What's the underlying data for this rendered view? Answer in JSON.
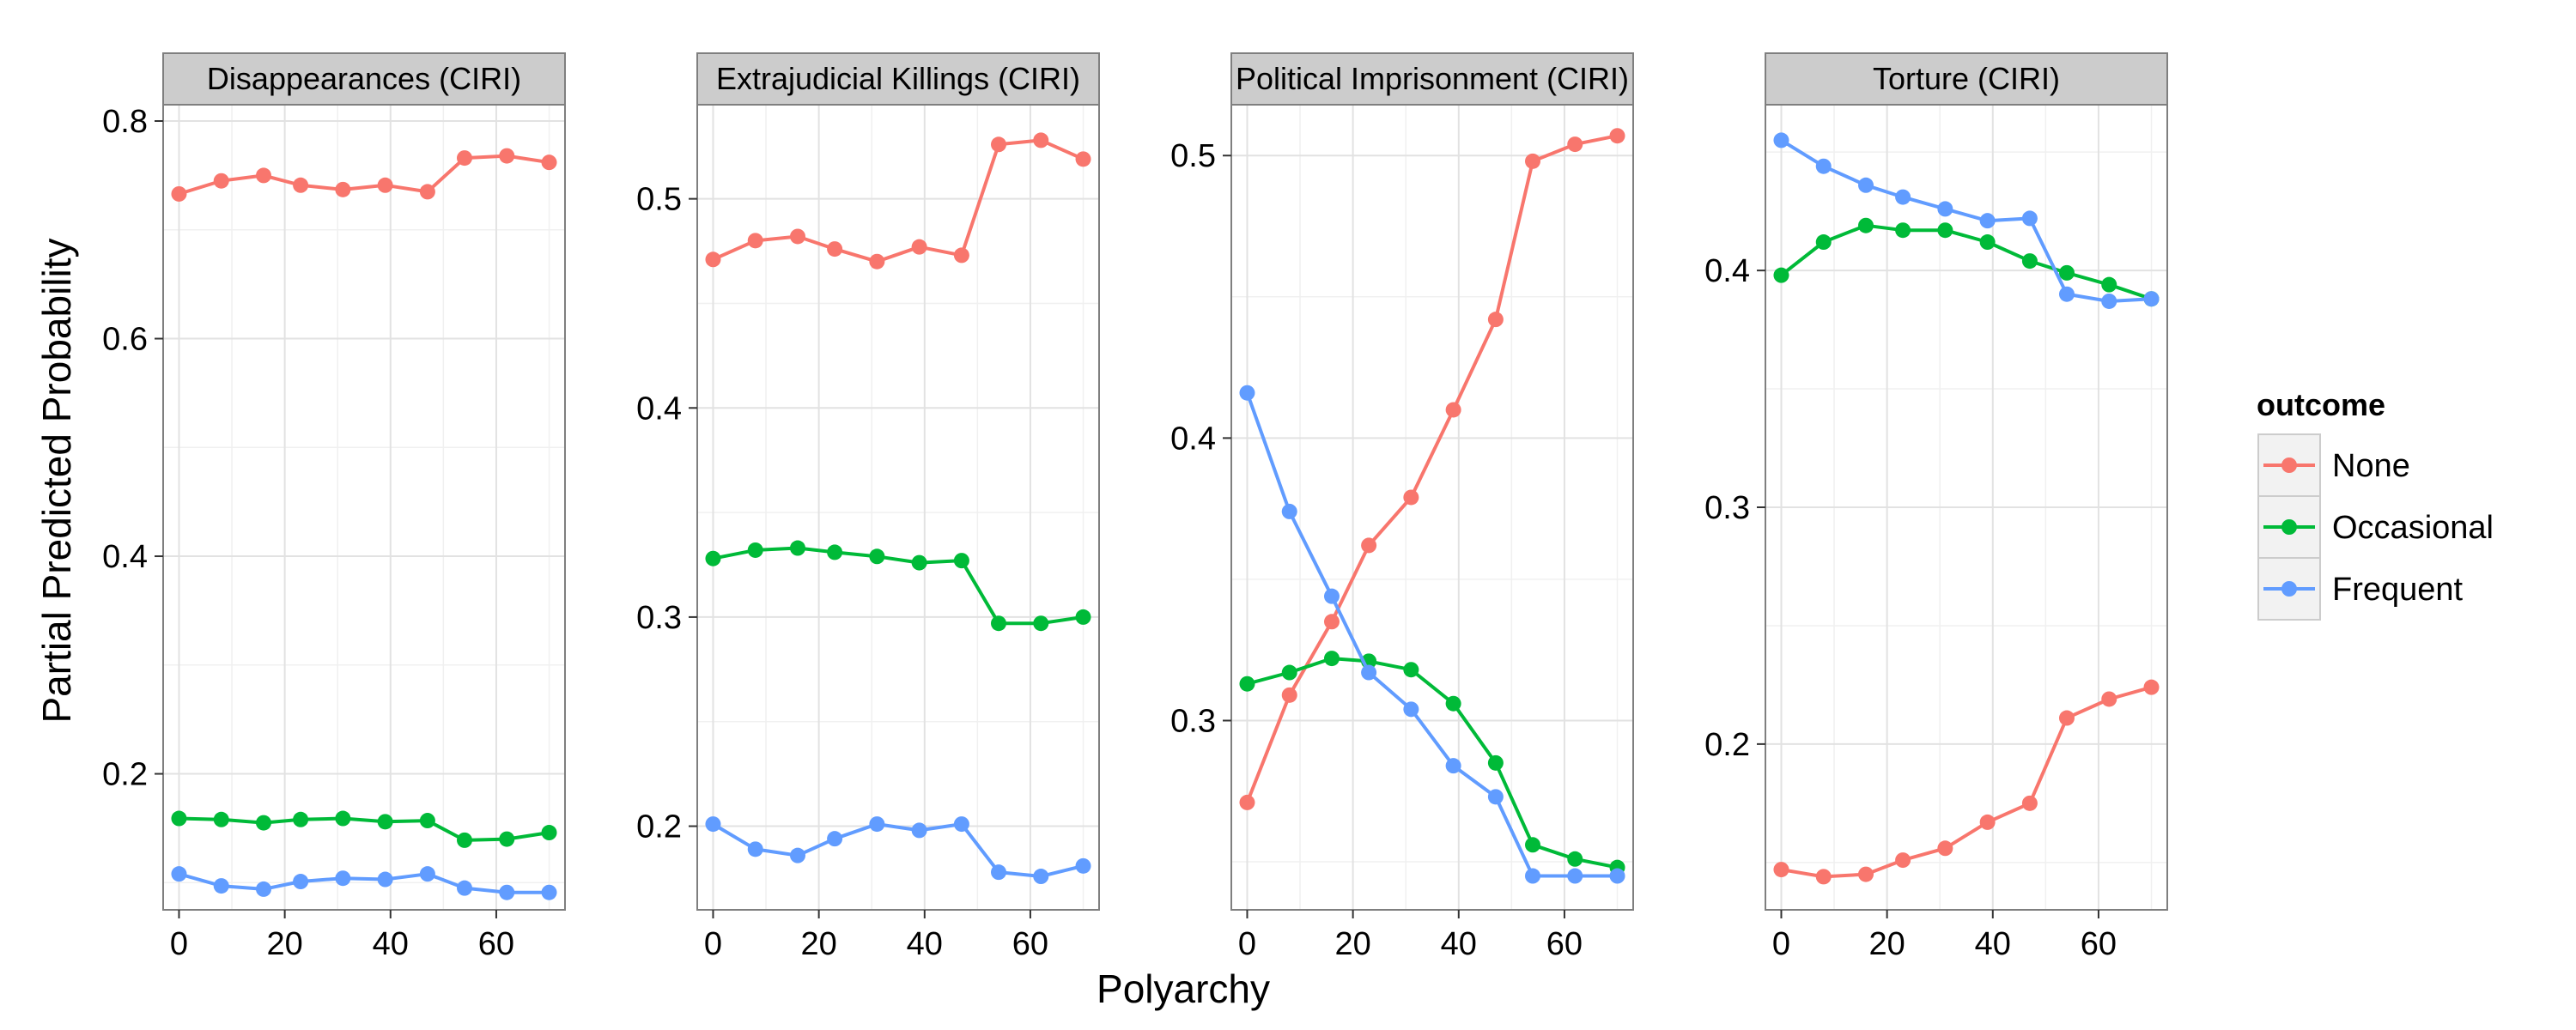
{
  "chart_data": {
    "type": "line",
    "xlabel": "Polyarchy",
    "ylabel": "Partial Predicted Probability",
    "x": [
      0,
      8,
      16,
      23,
      31,
      39,
      47,
      54,
      62,
      70
    ],
    "legend": {
      "title": "outcome",
      "placement": "right",
      "entries": [
        {
          "name": "None",
          "color": "#F8766D"
        },
        {
          "name": "Occasional",
          "color": "#00BA38"
        },
        {
          "name": "Frequent",
          "color": "#619CFF"
        }
      ]
    },
    "grid": true,
    "panels": [
      {
        "title": "Disappearances (CIRI)",
        "xlim": [
          -3,
          73
        ],
        "ylim": [
          0.075,
          0.815
        ],
        "xticks": [
          0,
          20,
          40,
          60
        ],
        "yticks": [
          0.2,
          0.4,
          0.6,
          0.8
        ],
        "ytick_labels": [
          "0.2",
          "0.4",
          "0.6",
          "0.8"
        ],
        "series": [
          {
            "name": "None",
            "values": [
              0.733,
              0.745,
              0.75,
              0.741,
              0.737,
              0.741,
              0.735,
              0.766,
              0.768,
              0.762
            ]
          },
          {
            "name": "Occasional",
            "values": [
              0.159,
              0.158,
              0.155,
              0.158,
              0.159,
              0.156,
              0.157,
              0.139,
              0.14,
              0.146
            ]
          },
          {
            "name": "Frequent",
            "values": [
              0.108,
              0.097,
              0.094,
              0.101,
              0.104,
              0.103,
              0.108,
              0.095,
              0.091,
              0.091
            ]
          }
        ]
      },
      {
        "title": "Extrajudicial Killings (CIRI)",
        "xlim": [
          -3,
          73
        ],
        "ylim": [
          0.16,
          0.545
        ],
        "xticks": [
          0,
          20,
          40,
          60
        ],
        "yticks": [
          0.2,
          0.3,
          0.4,
          0.5
        ],
        "ytick_labels": [
          "0.2",
          "0.3",
          "0.4",
          "0.5"
        ],
        "series": [
          {
            "name": "None",
            "values": [
              0.471,
              0.48,
              0.482,
              0.476,
              0.47,
              0.477,
              0.473,
              0.526,
              0.528,
              0.519
            ]
          },
          {
            "name": "Occasional",
            "values": [
              0.328,
              0.332,
              0.333,
              0.331,
              0.329,
              0.326,
              0.327,
              0.297,
              0.297,
              0.3
            ]
          },
          {
            "name": "Frequent",
            "values": [
              0.201,
              0.189,
              0.186,
              0.194,
              0.201,
              0.198,
              0.201,
              0.178,
              0.176,
              0.181
            ]
          }
        ]
      },
      {
        "title": "Political Imprisonment (CIRI)",
        "xlim": [
          -3,
          73
        ],
        "ylim": [
          0.233,
          0.518
        ],
        "xticks": [
          0,
          20,
          40,
          60
        ],
        "yticks": [
          0.3,
          0.4,
          0.5
        ],
        "ytick_labels": [
          "0.3",
          "0.4",
          "0.5"
        ],
        "series": [
          {
            "name": "None",
            "values": [
              0.271,
              0.309,
              0.335,
              0.362,
              0.379,
              0.41,
              0.442,
              0.498,
              0.504,
              0.507
            ]
          },
          {
            "name": "Occasional",
            "values": [
              0.313,
              0.317,
              0.322,
              0.321,
              0.318,
              0.306,
              0.285,
              0.256,
              0.251,
              0.248
            ]
          },
          {
            "name": "Frequent",
            "values": [
              0.416,
              0.374,
              0.344,
              0.317,
              0.304,
              0.284,
              0.273,
              0.245,
              0.245,
              0.245
            ]
          }
        ]
      },
      {
        "title": "Torture (CIRI)",
        "xlim": [
          -3,
          73
        ],
        "ylim": [
          0.13,
          0.47
        ],
        "xticks": [
          0,
          20,
          40,
          60
        ],
        "yticks": [
          0.2,
          0.3,
          0.4
        ],
        "ytick_labels": [
          "0.2",
          "0.3",
          "0.4"
        ],
        "series": [
          {
            "name": "None",
            "values": [
              0.147,
              0.144,
              0.145,
              0.151,
              0.156,
              0.167,
              0.175,
              0.211,
              0.219,
              0.224
            ]
          },
          {
            "name": "Occasional",
            "values": [
              0.398,
              0.412,
              0.419,
              0.417,
              0.417,
              0.412,
              0.404,
              0.399,
              0.394,
              0.388
            ]
          },
          {
            "name": "Frequent",
            "values": [
              0.455,
              0.444,
              0.436,
              0.431,
              0.426,
              0.421,
              0.422,
              0.39,
              0.387,
              0.388
            ]
          }
        ]
      }
    ]
  }
}
